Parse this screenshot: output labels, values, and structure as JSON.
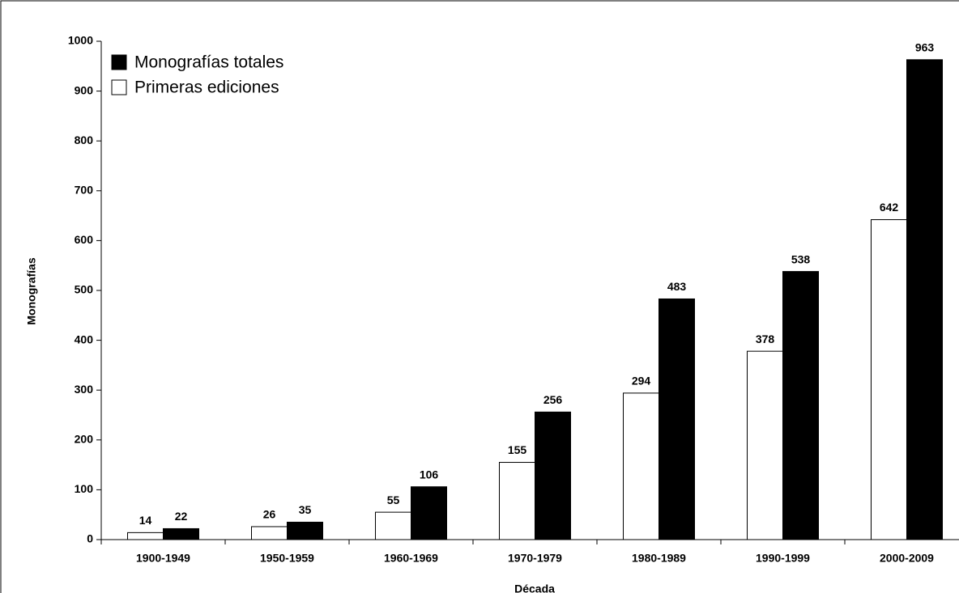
{
  "chart_data": {
    "type": "bar",
    "x_label": "Década",
    "y_label": "Monografías",
    "categories": [
      "1900-1949",
      "1950-1959",
      "1960-1969",
      "1970-1979",
      "1980-1989",
      "1990-1999",
      "2000-2009"
    ],
    "series": [
      {
        "name": "Monografías totales",
        "color": "#000000",
        "values": [
          22,
          35,
          106,
          256,
          483,
          538,
          963
        ]
      },
      {
        "name": "Primeras ediciones",
        "color": "#ffffff",
        "values": [
          14,
          26,
          55,
          155,
          294,
          378,
          642
        ]
      }
    ],
    "ylim": [
      0,
      1000
    ],
    "yticks": [
      0,
      100,
      200,
      300,
      400,
      500,
      600,
      700,
      800,
      900,
      1000
    ],
    "legend": "upper left"
  }
}
